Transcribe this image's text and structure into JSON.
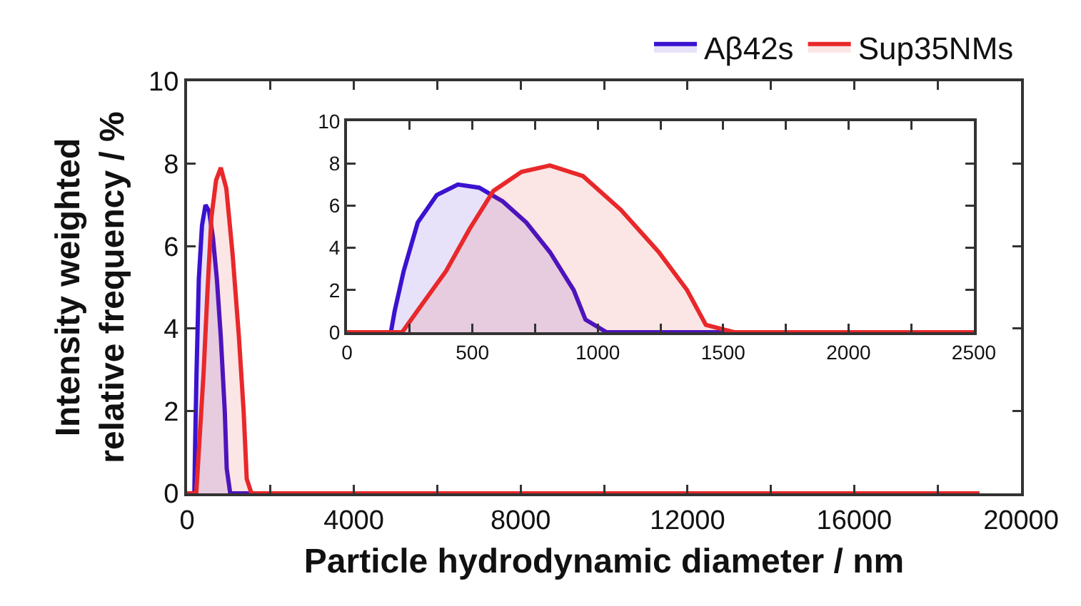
{
  "chart_data": [
    {
      "type": "area",
      "xlabel": "Particle hydrodynamic diameter / nm",
      "ylabel": "Intensity weighted relative frequency / %",
      "series": [
        {
          "name": "Aβ42s",
          "color": "#3a12d0",
          "x": [
            0,
            175,
            190,
            226,
            282,
            358,
            442,
            527,
            621,
            715,
            809,
            904,
            951,
            1035,
            2500,
            19000
          ],
          "values": [
            0,
            0,
            1.0,
            2.9,
            5.2,
            6.5,
            7.0,
            6.85,
            6.2,
            5.2,
            3.8,
            2.0,
            0.6,
            0,
            0,
            0
          ]
        },
        {
          "name": "Sup35NMs",
          "color": "#e8282a",
          "x": [
            0,
            220,
            301,
            395,
            489,
            584,
            696,
            809,
            941,
            1092,
            1243,
            1356,
            1431,
            1544,
            2500,
            19000
          ],
          "values": [
            0,
            0,
            1.35,
            2.9,
            4.9,
            6.7,
            7.6,
            7.9,
            7.4,
            5.8,
            3.8,
            2.0,
            0.35,
            0,
            0,
            0
          ]
        }
      ],
      "xlim": [
        0,
        20000
      ],
      "xticks": [
        0,
        {
          "value": 2000,
          "label": null
        },
        4000,
        {
          "value": 6000,
          "label": null
        },
        8000,
        {
          "value": 10000,
          "label": null
        },
        12000,
        {
          "value": 14000,
          "label": null
        },
        16000,
        {
          "value": 18000,
          "label": null
        },
        20000
      ],
      "ylim": [
        0,
        10
      ],
      "yticks": [
        0,
        2,
        4,
        6,
        8,
        10
      ],
      "grid": false,
      "legend": "top right",
      "marker": "none",
      "line_style": "solid"
    },
    {
      "type": "area",
      "series": [
        {
          "color": "#3a12d0",
          "x": [
            0,
            175,
            190,
            226,
            282,
            358,
            442,
            527,
            621,
            715,
            809,
            904,
            951,
            1035,
            2500
          ],
          "values": [
            0,
            0,
            1.0,
            2.9,
            5.2,
            6.5,
            7.0,
            6.85,
            6.2,
            5.2,
            3.8,
            2.0,
            0.6,
            0,
            0
          ]
        },
        {
          "color": "#e8282a",
          "x": [
            0,
            220,
            301,
            395,
            489,
            584,
            696,
            809,
            941,
            1092,
            1243,
            1356,
            1431,
            1544,
            2500
          ],
          "values": [
            0,
            0,
            1.35,
            2.9,
            4.9,
            6.7,
            7.6,
            7.9,
            7.4,
            5.8,
            3.8,
            2.0,
            0.35,
            0,
            0
          ]
        }
      ],
      "xlim": [
        0,
        2500
      ],
      "xticks": [
        0,
        {
          "value": 250,
          "label": null
        },
        500,
        {
          "value": 750,
          "label": null
        },
        1000,
        {
          "value": 1250,
          "label": null
        },
        1500,
        {
          "value": 1750,
          "label": null
        },
        2000,
        {
          "value": 2250,
          "label": null
        },
        2500
      ],
      "ylim": [
        0,
        10
      ],
      "yticks": [
        0,
        2,
        4,
        6,
        8,
        10
      ],
      "grid": false,
      "legend": false,
      "marker": "none",
      "line_style": "solid"
    }
  ]
}
